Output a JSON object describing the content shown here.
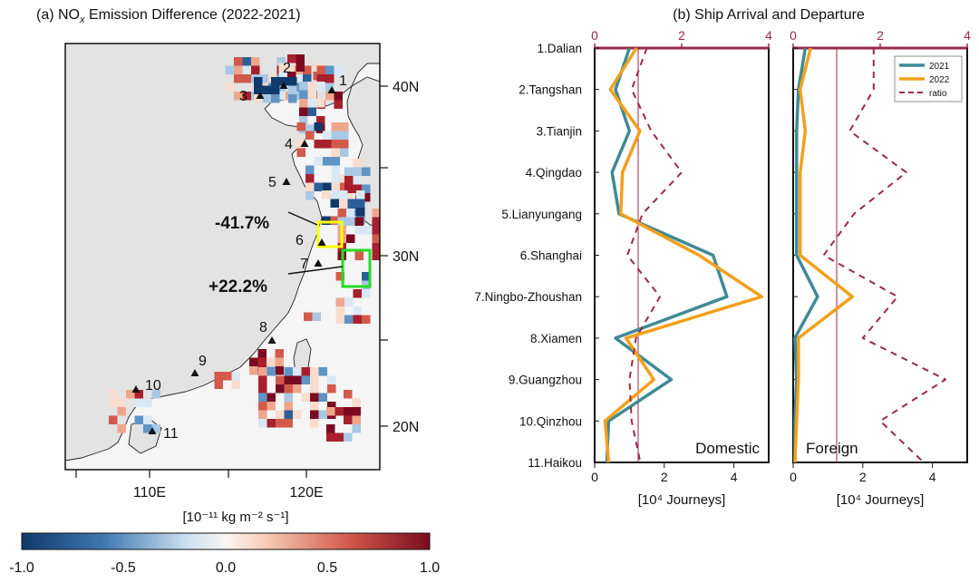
{
  "panel_a": {
    "title_prefix": "(a) NO",
    "title_sub": "x",
    "title_suffix": " Emission Difference (2022-2021)",
    "units_label": "[10⁻¹¹ kg m⁻² s⁻¹]",
    "lon_ticks": [
      "110E",
      "120E"
    ],
    "lat_ticks": [
      "40N",
      "30N",
      "20N"
    ],
    "ports": [
      "1",
      "2",
      "3",
      "4",
      "5",
      "6",
      "7",
      "8",
      "9",
      "10",
      "11"
    ],
    "annotation_decrease": "-41.7%",
    "annotation_increase": "+22.2%",
    "colorbar_ticks": [
      "-1.0",
      "-0.5",
      "0.0",
      "0.5",
      "1.0"
    ],
    "colors": {
      "land": "#e4e4e4",
      "box_decrease": "#ffff00",
      "box_increase": "#22dd22",
      "high": "#7b0b20",
      "low": "#0f3a6b"
    }
  },
  "chart_data": [
    {
      "type": "line",
      "title": "(b) Ship Arrival and Departure",
      "categories": [
        "1.Dalian",
        "2.Tangshan",
        "3.Tianjin",
        "4.Qingdao",
        "5.Lianyungang",
        "6.Shanghai",
        "7.Ningbo-Zhoushan",
        "8.Xiamen",
        "9.Guangzhou",
        "10.Qinzhou",
        "11.Haikou"
      ],
      "panels": [
        {
          "name": "Domestic",
          "xlabel": "[10⁴ Journeys]",
          "xlim": [
            0,
            5
          ],
          "xticks": [
            0,
            2,
            4
          ],
          "ratio_xlim": [
            0,
            4
          ],
          "ratio_xticks": [
            0,
            2,
            4
          ],
          "ratio_reference": 1,
          "series": [
            {
              "name": "2021",
              "axis": "bottom",
              "values": [
                1.0,
                0.6,
                1.0,
                0.5,
                0.7,
                3.4,
                3.8,
                0.6,
                2.2,
                0.4,
                0.35
              ]
            },
            {
              "name": "2022",
              "axis": "bottom",
              "values": [
                1.2,
                0.45,
                1.3,
                0.8,
                0.75,
                3.0,
                4.8,
                0.9,
                1.7,
                0.3,
                0.4
              ]
            },
            {
              "name": "ratio",
              "axis": "top",
              "values": [
                1.2,
                0.85,
                1.3,
                2.0,
                1.1,
                0.75,
                1.5,
                0.95,
                0.8,
                0.85,
                1.05
              ]
            }
          ]
        },
        {
          "name": "Foreign",
          "xlabel": "[10⁴ Journeys]",
          "xlim": [
            0,
            5
          ],
          "xticks": [
            0,
            2,
            4
          ],
          "ratio_xlim": [
            0,
            4
          ],
          "ratio_xticks": [
            0,
            2,
            4
          ],
          "ratio_reference": 1,
          "series": [
            {
              "name": "2021",
              "axis": "bottom",
              "values": [
                0.35,
                0.15,
                0.1,
                0.1,
                0.1,
                0.1,
                0.7,
                0.05,
                0.1,
                0.05,
                0.05
              ]
            },
            {
              "name": "2022",
              "axis": "bottom",
              "values": [
                0.5,
                0.2,
                0.35,
                0.2,
                0.2,
                0.2,
                1.7,
                0.15,
                0.15,
                0.1,
                0.05
              ]
            },
            {
              "name": "ratio",
              "axis": "top",
              "values": [
                1.85,
                1.85,
                1.3,
                2.6,
                1.4,
                0.7,
                2.4,
                1.6,
                3.5,
                2.0,
                3.0
              ]
            }
          ]
        }
      ],
      "legend": [
        "2021",
        "2022",
        "ratio"
      ],
      "legend_position": "top-right",
      "colors": {
        "2021": "#3e8a96",
        "2022": "#f2a01c",
        "ratio": "#9a2a48"
      }
    }
  ]
}
